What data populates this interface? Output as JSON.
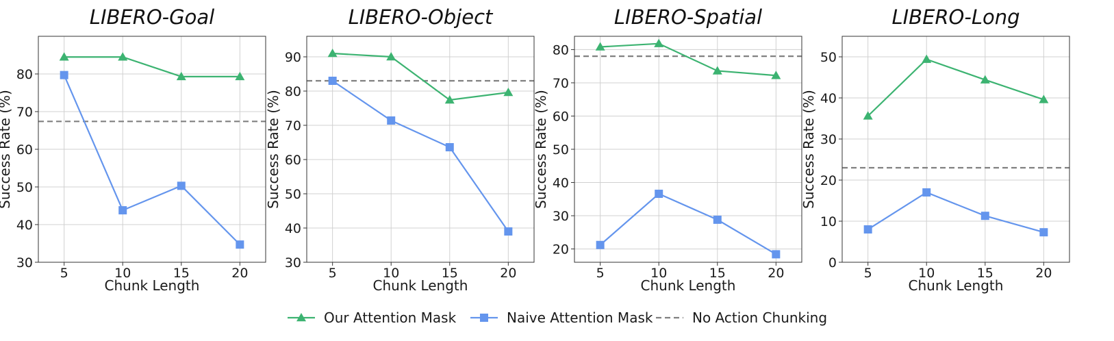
{
  "colors": {
    "ours": "#3cb371",
    "naive": "#6495ed",
    "baseline": "#808080",
    "grid": "#d0d0d0",
    "axes": "#333333"
  },
  "legend": {
    "position": "bottom-center",
    "items": [
      {
        "key": "ours",
        "label": "Our Attention Mask",
        "marker": "triangle"
      },
      {
        "key": "naive",
        "label": "Naive Attention Mask",
        "marker": "square"
      },
      {
        "key": "baseline",
        "label": "No Action Chunking",
        "marker": "dashed-line"
      }
    ]
  },
  "chart_data": [
    {
      "type": "line",
      "title": "LIBERO-Goal",
      "xlabel": "Chunk Length",
      "ylabel": "Success Rate (%)",
      "x": [
        5,
        10,
        15,
        20
      ],
      "xticks": [
        5,
        10,
        15,
        20
      ],
      "xlim": [
        2.8,
        22.2
      ],
      "ylim": [
        30,
        90
      ],
      "yticks": [
        30,
        40,
        50,
        60,
        70,
        80
      ],
      "grid": true,
      "series": [
        {
          "key": "ours",
          "name": "Our Attention Mask",
          "values": [
            84.5,
            84.5,
            79.3,
            79.3
          ]
        },
        {
          "key": "naive",
          "name": "Naive Attention Mask",
          "values": [
            79.7,
            43.8,
            50.3,
            34.7
          ]
        }
      ],
      "baseline": {
        "key": "baseline",
        "name": "No Action Chunking",
        "value": 67.4
      }
    },
    {
      "type": "line",
      "title": "LIBERO-Object",
      "xlabel": "Chunk Length",
      "ylabel": "Success Rate (%)",
      "x": [
        5,
        10,
        15,
        20
      ],
      "xticks": [
        5,
        10,
        15,
        20
      ],
      "xlim": [
        2.8,
        22.2
      ],
      "ylim": [
        30,
        96
      ],
      "yticks": [
        30,
        40,
        50,
        60,
        70,
        80,
        90
      ],
      "grid": true,
      "series": [
        {
          "key": "ours",
          "name": "Our Attention Mask",
          "values": [
            91.0,
            90.0,
            77.4,
            79.6
          ]
        },
        {
          "key": "naive",
          "name": "Naive Attention Mask",
          "values": [
            83.0,
            71.4,
            63.6,
            39.0
          ]
        }
      ],
      "baseline": {
        "key": "baseline",
        "name": "No Action Chunking",
        "value": 83.0
      }
    },
    {
      "type": "line",
      "title": "LIBERO-Spatial",
      "xlabel": "Chunk Length",
      "ylabel": "Success Rate (%)",
      "x": [
        5,
        10,
        15,
        20
      ],
      "xticks": [
        5,
        10,
        15,
        20
      ],
      "xlim": [
        2.8,
        22.2
      ],
      "ylim": [
        16,
        84
      ],
      "yticks": [
        20,
        30,
        40,
        50,
        60,
        70,
        80
      ],
      "grid": true,
      "series": [
        {
          "key": "ours",
          "name": "Our Attention Mask",
          "values": [
            80.8,
            81.8,
            73.6,
            72.2
          ]
        },
        {
          "key": "naive",
          "name": "Naive Attention Mask",
          "values": [
            21.2,
            36.6,
            28.8,
            18.4
          ]
        }
      ],
      "baseline": {
        "key": "baseline",
        "name": "No Action Chunking",
        "value": 78.0
      }
    },
    {
      "type": "line",
      "title": "LIBERO-Long",
      "xlabel": "Chunk Length",
      "ylabel": "Success Rate (%)",
      "x": [
        5,
        10,
        15,
        20
      ],
      "xticks": [
        5,
        10,
        15,
        20
      ],
      "xlim": [
        2.8,
        22.2
      ],
      "ylim": [
        0,
        55
      ],
      "yticks": [
        0,
        10,
        20,
        30,
        40,
        50
      ],
      "grid": true,
      "series": [
        {
          "key": "ours",
          "name": "Our Attention Mask",
          "values": [
            35.6,
            49.4,
            44.4,
            39.6
          ]
        },
        {
          "key": "naive",
          "name": "Naive Attention Mask",
          "values": [
            8.0,
            17.0,
            11.3,
            7.3
          ]
        }
      ],
      "baseline": {
        "key": "baseline",
        "name": "No Action Chunking",
        "value": 23.0
      }
    }
  ]
}
